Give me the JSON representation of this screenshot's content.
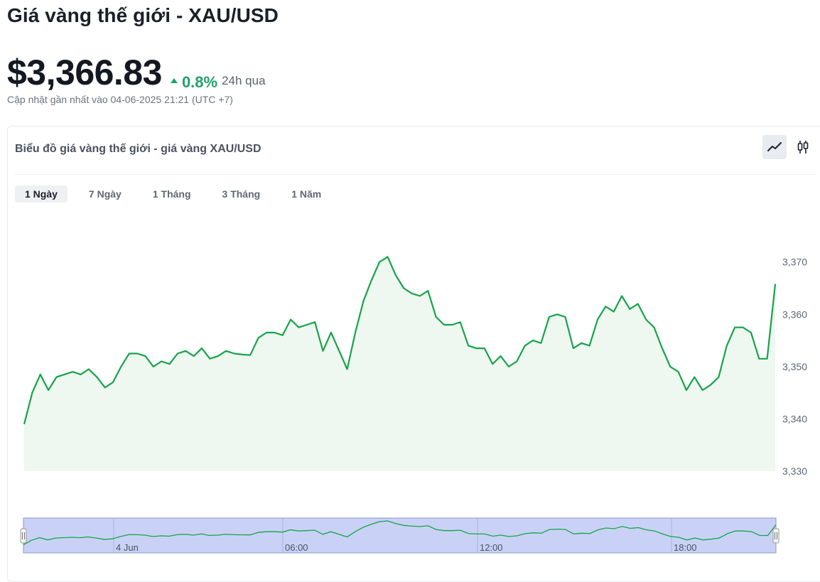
{
  "header": {
    "title": "Giá vàng thế giới - XAU/USD",
    "price": "$3,366.83",
    "change": "0.8%",
    "period": "24h qua",
    "updated": "Cập nhật gần nhất vào 04-06-2025 21:21 (UTC +7)"
  },
  "card": {
    "title": "Biểu đồ giá vàng thế giới - giá vàng XAU/USD",
    "toggle": {
      "line_icon": "line-chart-icon",
      "candle_icon": "candlestick-icon"
    },
    "tabs": [
      {
        "label": "1 Ngày",
        "active": true
      },
      {
        "label": "7 Ngày",
        "active": false
      },
      {
        "label": "1 Tháng",
        "active": false
      },
      {
        "label": "3 Tháng",
        "active": false
      },
      {
        "label": "1 Năm",
        "active": false
      }
    ]
  },
  "colors": {
    "up": "#1fa36a",
    "line": "#16a34a",
    "area": "#eef7f0",
    "navigator": "#c9d2f6",
    "navigator_border": "#8b96c8"
  },
  "chart_data": {
    "type": "area",
    "title": "",
    "xlabel": "",
    "ylabel": "",
    "ylim": [
      3330,
      3372
    ],
    "yticks": [
      3330,
      3340,
      3350,
      3360,
      3370
    ],
    "ytick_labels": [
      "3,330",
      "3,340",
      "3,350",
      "3,360",
      "3,370"
    ],
    "y_axis_position": "right",
    "grid": false,
    "series": [
      {
        "values": [
          3339,
          3345,
          3348.5,
          3345.5,
          3348,
          3348.5,
          3349,
          3348.5,
          3349.5,
          3348,
          3346,
          3347,
          3350,
          3352.5,
          3352.5,
          3352,
          3350,
          3351,
          3350.5,
          3352.5,
          3353,
          3352,
          3353.5,
          3351.5,
          3352,
          3353,
          3352.5,
          3352.3,
          3352.2,
          3355.5,
          3356.5,
          3356.5,
          3356,
          3359,
          3357.5,
          3358,
          3358.5,
          3353,
          3356.5,
          3353,
          3349.5,
          3356.5,
          3362.5,
          3366.5,
          3370,
          3371,
          3367.5,
          3365,
          3364,
          3363.5,
          3364.5,
          3359.5,
          3358,
          3358,
          3358.5,
          3354,
          3353.5,
          3353.5,
          3350.5,
          3352,
          3350,
          3351,
          3354,
          3355,
          3354.5,
          3359.5,
          3360,
          3359.5,
          3353.5,
          3354.5,
          3354,
          3359,
          3361.5,
          3360.5,
          3363.5,
          3361,
          3362,
          3359,
          3357.5,
          3353.5,
          3350,
          3349,
          3345.5,
          3348,
          3345.5,
          3346.5,
          3348,
          3354,
          3357.5,
          3357.5,
          3356.5,
          3351.5,
          3351.5,
          3365.8
        ]
      }
    ],
    "navigator": {
      "x_labels": [
        "4 Jun",
        "06:00",
        "12:00",
        "18:00"
      ]
    }
  }
}
